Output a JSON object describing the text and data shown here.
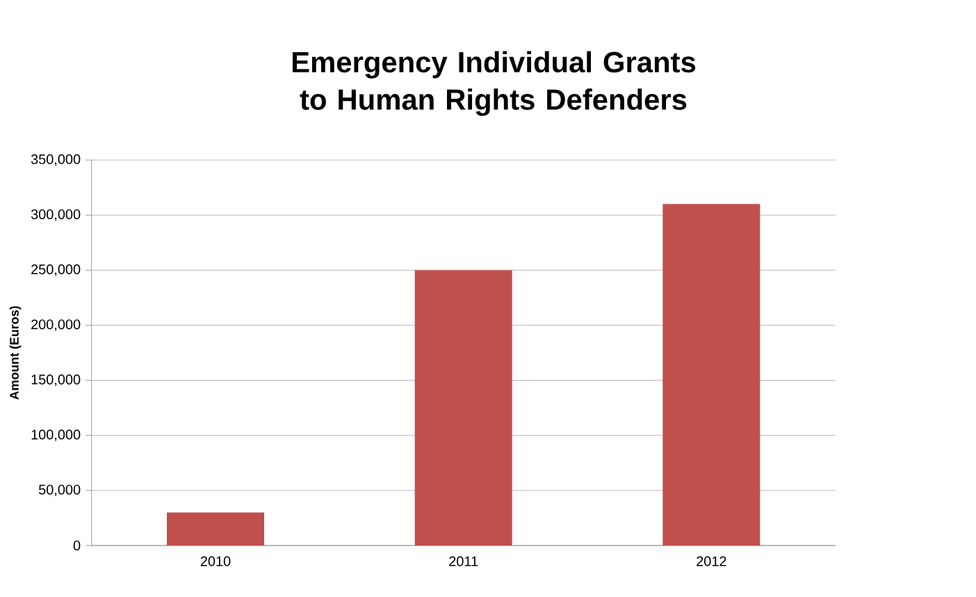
{
  "chart_data": {
    "type": "bar",
    "title": "Emergency Individual Grants to Human Rights Defenders",
    "ylabel": "Amount (Euros)",
    "categories": [
      "2010",
      "2011",
      "2012"
    ],
    "values": [
      30000,
      250000,
      310000
    ],
    "color": "#c0504d",
    "ylim": [
      0,
      350000
    ],
    "yticks": [
      {
        "value": 0,
        "label": "0"
      },
      {
        "value": 50000,
        "label": "50,000"
      },
      {
        "value": 100000,
        "label": "100,000"
      },
      {
        "value": 150000,
        "label": "150,000"
      },
      {
        "value": 200000,
        "label": "200,000"
      },
      {
        "value": 250000,
        "label": "250,000"
      },
      {
        "value": 300000,
        "label": "300,000"
      },
      {
        "value": 350000,
        "label": "350,000"
      }
    ],
    "grid": "y"
  }
}
